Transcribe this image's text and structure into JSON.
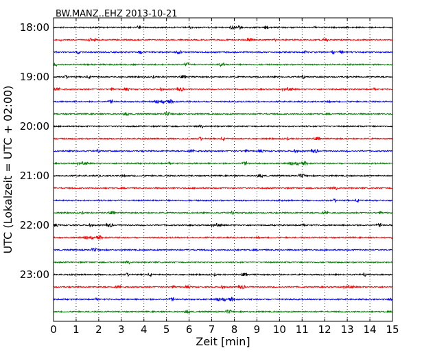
{
  "chart_data": {
    "type": "line",
    "title": "BW.MANZ..EHZ 2013-10-21",
    "xlabel": "Zeit  [min]",
    "ylabel": "UTC (Lokalzeit = UTC + 02:00)",
    "xlim": [
      0,
      15
    ],
    "x_ticks": [
      "0",
      "1",
      "2",
      "3",
      "4",
      "5",
      "6",
      "7",
      "8",
      "9",
      "10",
      "11",
      "12",
      "13",
      "14",
      "15"
    ],
    "y_ticks": [
      "18:00",
      "19:00",
      "20:00",
      "21:00",
      "22:00",
      "23:00"
    ],
    "grid": "vertical dotted",
    "trace_colors": [
      "#000000",
      "#ff0000",
      "#0000ff",
      "#007f00"
    ],
    "trace_count": 24,
    "trace_interval_minutes": 15
  }
}
